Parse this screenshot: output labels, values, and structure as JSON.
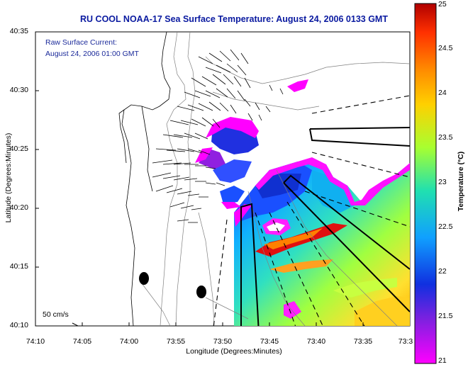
{
  "title": "RU COOL  NOAA-17  Sea Surface Temperature:  August 24, 2006 0133 GMT",
  "annotation": {
    "line1": "Raw Surface Current:",
    "line2": "August 24, 2006 01:00 GMT"
  },
  "axes": {
    "xlabel": "Longitude (Degrees:Minutes)",
    "ylabel": "Latitude (Degrees:Minutes)",
    "xticks": [
      "74:10",
      "74:05",
      "74:00",
      "73:55",
      "73:50",
      "73:45",
      "73:40",
      "73:35",
      "73:3"
    ],
    "yticks": [
      "40:35",
      "40:30",
      "40:25",
      "40:20",
      "40:15",
      "40:10"
    ]
  },
  "colorbar": {
    "label": "Temperature (°C)",
    "ticks": [
      "25",
      "24.5",
      "24",
      "23.5",
      "23",
      "22.5",
      "22",
      "21.5",
      "21"
    ],
    "colors": [
      "#d40000",
      "#ff3000",
      "#ff8800",
      "#ffd000",
      "#a8ff30",
      "#20e0b0",
      "#10a0ff",
      "#1030e0",
      "#8020e0",
      "#ff00ff"
    ]
  },
  "scale_arrow": {
    "label": "50 cm/s"
  }
}
